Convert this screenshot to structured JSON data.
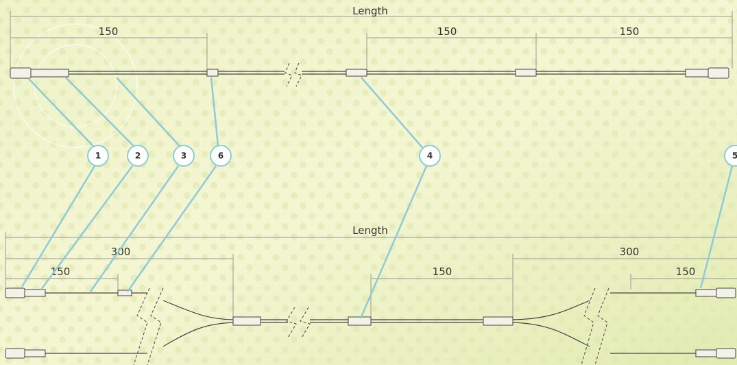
{
  "top": {
    "length_label": "Length",
    "dims": [
      "150",
      "150",
      "150"
    ]
  },
  "callouts": [
    "1",
    "2",
    "3",
    "6",
    "4",
    "5"
  ],
  "bottom": {
    "length_label": "Length",
    "dims": [
      "300",
      "150",
      "150",
      "300",
      "150"
    ]
  }
}
